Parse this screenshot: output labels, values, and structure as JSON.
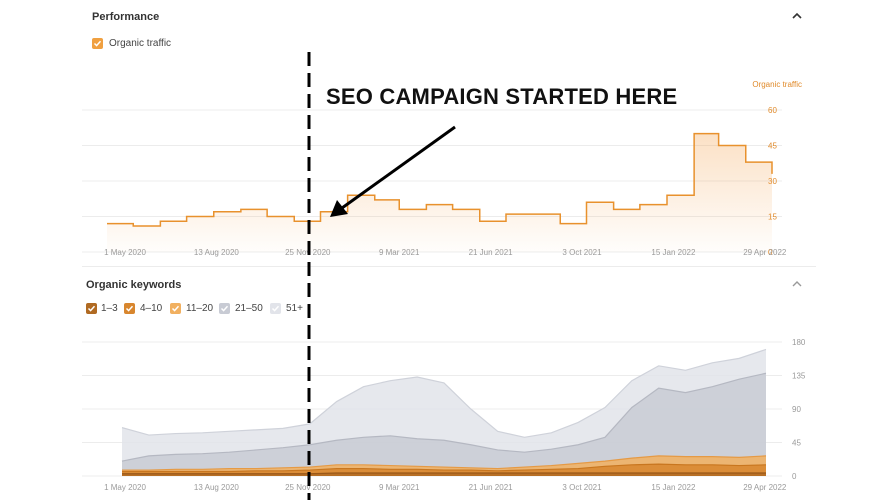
{
  "performance": {
    "title": "Performance",
    "legend": [
      {
        "label": "Organic traffic",
        "checked": true,
        "color": "#f0a040"
      }
    ],
    "chart_data": {
      "type": "line",
      "series": [
        {
          "name": "Organic traffic",
          "color": "#e8912d",
          "x": [
            "2020-04-01",
            "2020-05-01",
            "2020-06-01",
            "2020-07-01",
            "2020-08-01",
            "2020-09-01",
            "2020-10-01",
            "2020-11-01",
            "2020-12-01",
            "2021-01-01",
            "2021-02-01",
            "2021-03-01",
            "2021-04-01",
            "2021-05-01",
            "2021-06-01",
            "2021-07-01",
            "2021-08-01",
            "2021-09-01",
            "2021-10-01",
            "2021-11-01",
            "2021-12-01",
            "2022-01-01",
            "2022-02-01",
            "2022-03-01",
            "2022-04-01",
            "2022-05-01"
          ],
          "values": [
            12,
            11,
            13,
            15,
            17,
            18,
            15,
            13,
            17,
            24,
            22,
            18,
            20,
            18,
            13,
            16,
            16,
            12,
            21,
            18,
            20,
            24,
            50,
            45,
            38,
            33
          ]
        }
      ],
      "x_tick_labels": [
        "1 May 2020",
        "13 Aug 2020",
        "25 Nov 2020",
        "9 Mar 2021",
        "21 Jun 2021",
        "3 Oct 2021",
        "15 Jan 2022",
        "29 Apr 2022"
      ],
      "y_axis_title": "Organic traffic",
      "y_tick_labels": [
        "60",
        "45",
        "30",
        "15",
        "0"
      ],
      "ylim": [
        0,
        60
      ]
    }
  },
  "keywords": {
    "title": "Organic keywords",
    "legend": [
      {
        "label": "1–3",
        "checked": true,
        "color": "#b06a22"
      },
      {
        "label": "4–10",
        "checked": true,
        "color": "#d8862e"
      },
      {
        "label": "11–20",
        "checked": true,
        "color": "#f1b060"
      },
      {
        "label": "21–50",
        "checked": true,
        "color": "#c8cbd4"
      },
      {
        "label": "51+",
        "checked": true,
        "color": "#e2e4ea"
      }
    ],
    "chart_data": {
      "type": "area",
      "x_tick_labels": [
        "1 May 2020",
        "13 Aug 2020",
        "25 Nov 2020",
        "9 Mar 2021",
        "21 Jun 2021",
        "3 Oct 2021",
        "15 Jan 2022",
        "29 Apr 2022"
      ],
      "y_tick_labels": [
        "180",
        "135",
        "90",
        "45",
        "0"
      ],
      "ylim": [
        0,
        180
      ],
      "categories": [
        "2020-04",
        "2020-05",
        "2020-06",
        "2020-08",
        "2020-09",
        "2020-10",
        "2020-11",
        "2020-12",
        "2021-01",
        "2021-02",
        "2021-03",
        "2021-04",
        "2021-05",
        "2021-06",
        "2021-07",
        "2021-08",
        "2021-09",
        "2021-10",
        "2021-11",
        "2021-12",
        "2022-01",
        "2022-02",
        "2022-03",
        "2022-04",
        "2022-05"
      ],
      "series": [
        {
          "name": "1–3",
          "color": "#b06a22",
          "values": [
            3,
            3,
            3,
            3,
            3,
            3,
            3,
            3,
            4,
            4,
            4,
            4,
            4,
            4,
            4,
            4,
            4,
            4,
            4,
            4,
            4,
            4,
            4,
            4,
            4
          ]
        },
        {
          "name": "4–10",
          "color": "#d8862e",
          "values": [
            6,
            6,
            6,
            6,
            6,
            7,
            7,
            8,
            10,
            10,
            9,
            9,
            8,
            8,
            7,
            8,
            9,
            10,
            13,
            15,
            16,
            15,
            15,
            14,
            15
          ]
        },
        {
          "name": "11–20",
          "color": "#f1b060",
          "values": [
            8,
            8,
            9,
            9,
            10,
            10,
            11,
            12,
            15,
            15,
            14,
            13,
            12,
            11,
            10,
            12,
            14,
            17,
            20,
            24,
            27,
            26,
            26,
            25,
            27
          ]
        },
        {
          "name": "21–50",
          "color": "#c8cbd4",
          "values": [
            20,
            27,
            29,
            30,
            32,
            35,
            38,
            42,
            48,
            52,
            54,
            50,
            48,
            42,
            35,
            32,
            36,
            42,
            52,
            92,
            118,
            112,
            120,
            130,
            138
          ]
        },
        {
          "name": "51+",
          "color": "#e2e4ea",
          "values": [
            65,
            55,
            57,
            58,
            60,
            62,
            64,
            70,
            100,
            120,
            128,
            133,
            125,
            90,
            60,
            52,
            58,
            72,
            92,
            128,
            148,
            142,
            152,
            158,
            170
          ]
        }
      ]
    }
  },
  "annotation": {
    "text": "SEO CAMPAIGN STARTED HERE"
  },
  "colors": {
    "accent": "#e8912d",
    "grid": "#ececec",
    "annotation": "#000000"
  }
}
